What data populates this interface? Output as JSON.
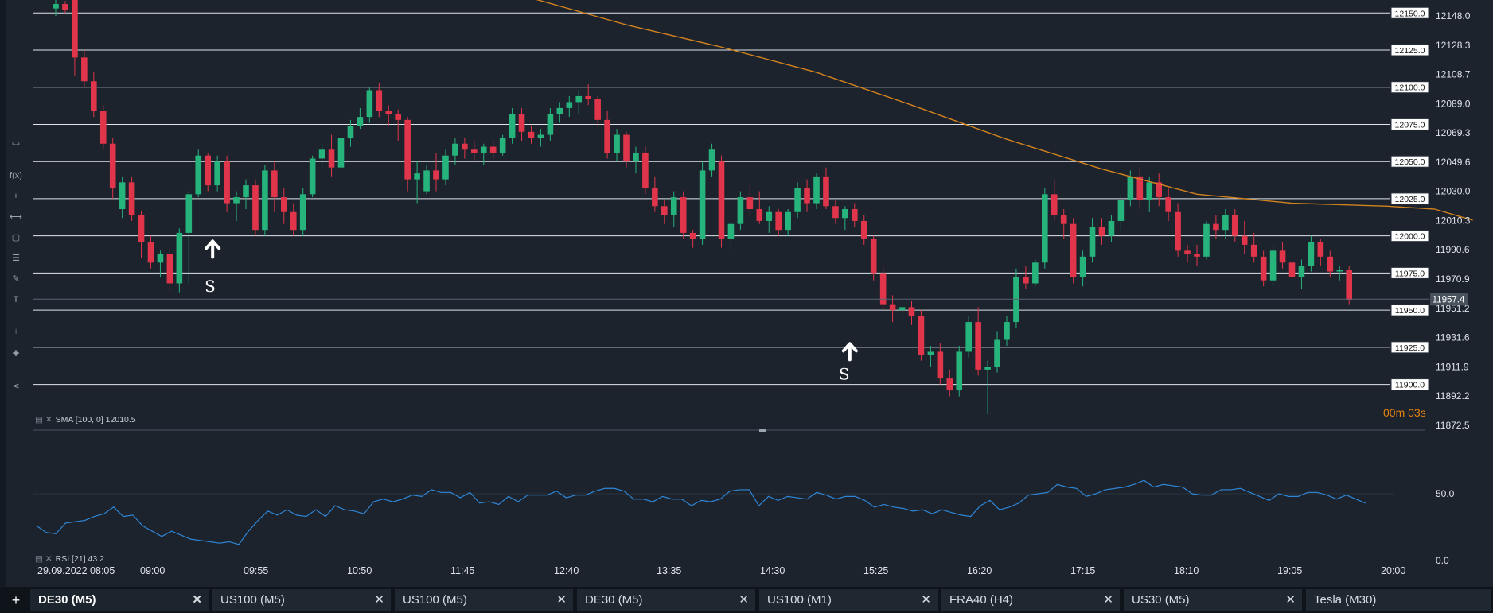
{
  "window": {
    "active_symbol": "DE30 (M5)"
  },
  "colors": {
    "up": "#26b37c",
    "down": "#e0354a",
    "sma": "#d2821e",
    "rsi": "#2f86d6",
    "grid": "#dfe4ea",
    "bg": "#1c232c"
  },
  "toolbar": {
    "icons": [
      "monitor-icon",
      "function-icon",
      "crosshair-icon",
      "line-tool-icon",
      "rectangle-icon",
      "fibonacci-icon",
      "pencil-icon",
      "text-icon",
      "indicators-icon",
      "layers-icon",
      "share-icon"
    ],
    "function_label": "f(x)"
  },
  "price_axis": {
    "ticks": [
      "12148.0",
      "12128.3",
      "12108.7",
      "12089.0",
      "12069.3",
      "12049.6",
      "12030.0",
      "12010.3",
      "11990.6",
      "11970.9",
      "11951.2",
      "11931.6",
      "11911.9",
      "11892.2",
      "11872.5"
    ],
    "current_price": "11957.4"
  },
  "levels": [
    "12150.0",
    "12125.0",
    "12100.0",
    "12075.0",
    "12050.0",
    "12025.0",
    "12000.0",
    "11975.0",
    "11950.0",
    "11925.0",
    "11900.0"
  ],
  "rsi_axis": {
    "ticks": [
      "50.0",
      "0.0"
    ]
  },
  "time_axis": {
    "labels": [
      "29.09.2022 08:05",
      "09:00",
      "09:55",
      "10:50",
      "11:45",
      "12:40",
      "13:35",
      "14:30",
      "15:25",
      "16:20",
      "17:15",
      "18:10",
      "19:05",
      "20:00"
    ]
  },
  "indicators": {
    "sma": "SMA [100, 0] 12010.5",
    "rsi": "RSI [21] 43.2"
  },
  "timer": "00m 03s",
  "markers": [
    {
      "label": "S"
    },
    {
      "label": "S"
    }
  ],
  "tabs": [
    {
      "label": "DE30 (M5)",
      "active": true
    },
    {
      "label": "US100 (M5)"
    },
    {
      "label": "US100 (M5)"
    },
    {
      "label": "DE30 (M5)"
    },
    {
      "label": "US100 (M1)"
    },
    {
      "label": "FRA40 (H4)"
    },
    {
      "label": "US30 (M5)"
    },
    {
      "label": "Tesla (M30)"
    }
  ],
  "chart_data": {
    "type": "candlestick",
    "symbol": "DE30",
    "timeframe": "M5",
    "y_range": [
      11862,
      12160
    ],
    "rsi_range": [
      0,
      100
    ],
    "candles": [
      [
        12153,
        12160,
        12148,
        12156
      ],
      [
        12156,
        12158,
        12150,
        12152
      ],
      [
        12160,
        12165,
        12108,
        12120
      ],
      [
        12120,
        12125,
        12100,
        12104
      ],
      [
        12104,
        12110,
        12080,
        12084
      ],
      [
        12084,
        12088,
        12058,
        12062
      ],
      [
        12062,
        12066,
        12025,
        12032
      ],
      [
        12018,
        12040,
        12012,
        12036
      ],
      [
        12036,
        12040,
        12010,
        12014
      ],
      [
        12014,
        12017,
        11985,
        11996
      ],
      [
        11996,
        12000,
        11978,
        11982
      ],
      [
        11982,
        11990,
        11972,
        11988
      ],
      [
        11988,
        11992,
        11962,
        11968
      ],
      [
        11968,
        12005,
        11962,
        12002
      ],
      [
        12002,
        12030,
        11968,
        12028
      ],
      [
        12028,
        12058,
        12026,
        12054
      ],
      [
        12054,
        12056,
        12030,
        12034
      ],
      [
        12034,
        12054,
        12030,
        12050
      ],
      [
        12050,
        12054,
        12016,
        12022
      ],
      [
        12022,
        12030,
        12010,
        12026
      ],
      [
        12026,
        12038,
        12018,
        12034
      ],
      [
        12034,
        12038,
        12000,
        12004
      ],
      [
        12004,
        12048,
        12000,
        12044
      ],
      [
        12044,
        12050,
        12016,
        12026
      ],
      [
        12026,
        12032,
        12008,
        12016
      ],
      [
        12016,
        12022,
        12000,
        12004
      ],
      [
        12004,
        12032,
        12000,
        12028
      ],
      [
        12028,
        12054,
        12026,
        12052
      ],
      [
        12052,
        12062,
        12046,
        12058
      ],
      [
        12058,
        12068,
        12040,
        12046
      ],
      [
        12046,
        12068,
        12040,
        12066
      ],
      [
        12066,
        12078,
        12060,
        12074
      ],
      [
        12074,
        12086,
        12072,
        12080
      ],
      [
        12080,
        12100,
        12076,
        12098
      ],
      [
        12098,
        12103,
        12080,
        12084
      ],
      [
        12084,
        12088,
        12074,
        12082
      ],
      [
        12082,
        12085,
        12064,
        12078
      ],
      [
        12078,
        12080,
        12030,
        12038
      ],
      [
        12038,
        12050,
        12022,
        12042
      ],
      [
        12030,
        12048,
        12028,
        12044
      ],
      [
        12044,
        12056,
        12030,
        12038
      ],
      [
        12038,
        12058,
        12034,
        12054
      ],
      [
        12054,
        12066,
        12048,
        12062
      ],
      [
        12062,
        12066,
        12052,
        12058
      ],
      [
        12058,
        12064,
        12050,
        12056
      ],
      [
        12056,
        12062,
        12048,
        12060
      ],
      [
        12060,
        12064,
        12052,
        12056
      ],
      [
        12056,
        12068,
        12054,
        12066
      ],
      [
        12066,
        12086,
        12062,
        12082
      ],
      [
        12082,
        12086,
        12064,
        12070
      ],
      [
        12070,
        12074,
        12062,
        12066
      ],
      [
        12066,
        12072,
        12060,
        12068
      ],
      [
        12068,
        12086,
        12064,
        12082
      ],
      [
        12082,
        12090,
        12076,
        12086
      ],
      [
        12086,
        12094,
        12080,
        12090
      ],
      [
        12090,
        12098,
        12082,
        12094
      ],
      [
        12094,
        12102,
        12088,
        12092
      ],
      [
        12092,
        12094,
        12074,
        12078
      ],
      [
        12078,
        12084,
        12052,
        12056
      ],
      [
        12056,
        12072,
        12050,
        12068
      ],
      [
        12068,
        12070,
        12046,
        12050
      ],
      [
        12050,
        12060,
        12042,
        12056
      ],
      [
        12056,
        12060,
        12028,
        12032
      ],
      [
        12032,
        12040,
        12016,
        12020
      ],
      [
        12020,
        12024,
        12008,
        12014
      ],
      [
        12014,
        12030,
        12006,
        12026
      ],
      [
        12026,
        12030,
        11998,
        12002
      ],
      [
        12002,
        12004,
        11992,
        11998
      ],
      [
        11998,
        12050,
        11994,
        12044
      ],
      [
        12044,
        12062,
        12040,
        12058
      ],
      [
        12050,
        12054,
        11992,
        11998
      ],
      [
        11998,
        12010,
        11988,
        12008
      ],
      [
        12008,
        12030,
        12004,
        12026
      ],
      [
        12026,
        12034,
        12014,
        12018
      ],
      [
        12018,
        12030,
        12008,
        12010
      ],
      [
        12010,
        12020,
        12002,
        12016
      ],
      [
        12016,
        12018,
        12000,
        12004
      ],
      [
        12004,
        12018,
        12000,
        12016
      ],
      [
        12016,
        12036,
        12012,
        12032
      ],
      [
        12032,
        12038,
        12016,
        12022
      ],
      [
        12022,
        12042,
        12018,
        12040
      ],
      [
        12040,
        12046,
        12018,
        12020
      ],
      [
        12020,
        12024,
        12008,
        12012
      ],
      [
        12012,
        12020,
        12004,
        12018
      ],
      [
        12018,
        12022,
        12006,
        12010
      ],
      [
        12010,
        12014,
        11994,
        11998
      ],
      [
        11998,
        12000,
        11970,
        11975
      ],
      [
        11975,
        11980,
        11950,
        11954
      ],
      [
        11954,
        11960,
        11942,
        11950
      ],
      [
        11950,
        11958,
        11944,
        11952
      ],
      [
        11952,
        11956,
        11940,
        11946
      ],
      [
        11946,
        11950,
        11916,
        11920
      ],
      [
        11920,
        11926,
        11912,
        11922
      ],
      [
        11922,
        11928,
        11900,
        11904
      ],
      [
        11904,
        11910,
        11892,
        11896
      ],
      [
        11896,
        11926,
        11892,
        11922
      ],
      [
        11922,
        11946,
        11918,
        11942
      ],
      [
        11942,
        11952,
        11906,
        11910
      ],
      [
        11910,
        11916,
        11880,
        11912
      ],
      [
        11912,
        11936,
        11908,
        11930
      ],
      [
        11930,
        11946,
        11926,
        11942
      ],
      [
        11942,
        11978,
        11938,
        11972
      ],
      [
        11972,
        11980,
        11964,
        11968
      ],
      [
        11968,
        11984,
        11966,
        11982
      ],
      [
        11982,
        12032,
        11978,
        12028
      ],
      [
        12028,
        12038,
        12010,
        12014
      ],
      [
        12014,
        12018,
        11998,
        12008
      ],
      [
        12008,
        12012,
        11968,
        11972
      ],
      [
        11972,
        11990,
        11966,
        11986
      ],
      [
        11986,
        12012,
        11982,
        12006
      ],
      [
        12006,
        12012,
        11994,
        12000
      ],
      [
        12000,
        12014,
        11996,
        12010
      ],
      [
        12010,
        12028,
        12004,
        12024
      ],
      [
        12024,
        12044,
        12020,
        12040
      ],
      [
        12040,
        12046,
        12018,
        12024
      ],
      [
        12024,
        12040,
        12016,
        12036
      ],
      [
        12036,
        12042,
        12020,
        12026
      ],
      [
        12026,
        12032,
        12010,
        12016
      ],
      [
        12016,
        12022,
        11986,
        11990
      ],
      [
        11990,
        11994,
        11982,
        11988
      ],
      [
        11988,
        11994,
        11980,
        11986
      ],
      [
        11986,
        12010,
        11984,
        12008
      ],
      [
        12008,
        12014,
        11998,
        12004
      ],
      [
        12004,
        12018,
        11998,
        12014
      ],
      [
        12014,
        12018,
        11996,
        12000
      ],
      [
        12000,
        12010,
        11988,
        11994
      ],
      [
        11994,
        12002,
        11982,
        11986
      ],
      [
        11986,
        11990,
        11966,
        11970
      ],
      [
        11970,
        11994,
        11966,
        11990
      ],
      [
        11990,
        11996,
        11978,
        11982
      ],
      [
        11982,
        11986,
        11966,
        11972
      ],
      [
        11972,
        11984,
        11964,
        11980
      ],
      [
        11980,
        12000,
        11976,
        11996
      ],
      [
        11996,
        11998,
        11980,
        11986
      ],
      [
        11986,
        11990,
        11972,
        11976
      ],
      [
        11976,
        11980,
        11970,
        11977
      ],
      [
        11977,
        11980,
        11954,
        11957
      ]
    ],
    "sma_points": [
      [
        41,
        12190
      ],
      [
        50,
        12160
      ],
      [
        60,
        12142
      ],
      [
        70,
        12127
      ],
      [
        80,
        12110
      ],
      [
        90,
        12088
      ],
      [
        100,
        12065
      ],
      [
        110,
        12045
      ],
      [
        120,
        12028
      ],
      [
        130,
        12022
      ],
      [
        140,
        12020
      ],
      [
        145,
        12018
      ],
      [
        149,
        12010.5
      ]
    ],
    "rsi": [
      26,
      21,
      20,
      28,
      29,
      30,
      33,
      35,
      40,
      33,
      34,
      26,
      22,
      18,
      22,
      19,
      16,
      15,
      14,
      13,
      14,
      12,
      22,
      30,
      37,
      34,
      38,
      34,
      33,
      38,
      33,
      41,
      38,
      37,
      35,
      44,
      46,
      44,
      46,
      49,
      48,
      53,
      51,
      51,
      47,
      51,
      43,
      44,
      42,
      48,
      44,
      49,
      49,
      49,
      52,
      47,
      49,
      49,
      52,
      54,
      54,
      52,
      46,
      46,
      44,
      48,
      46,
      46,
      41,
      45,
      44,
      46,
      52,
      53,
      53,
      41,
      48,
      45,
      48,
      47,
      46,
      51,
      49,
      46,
      48,
      48,
      45,
      40,
      42,
      40,
      39,
      37,
      38,
      35,
      38,
      36,
      34,
      33,
      41,
      45,
      38,
      40,
      43,
      49,
      50,
      51,
      57,
      55,
      54,
      48,
      50,
      53,
      54,
      55,
      57,
      60,
      55,
      57,
      56,
      55,
      50,
      49,
      49,
      53,
      53,
      54,
      51,
      48,
      45,
      50,
      48,
      48,
      51,
      51,
      49,
      46,
      49,
      46,
      43
    ]
  }
}
